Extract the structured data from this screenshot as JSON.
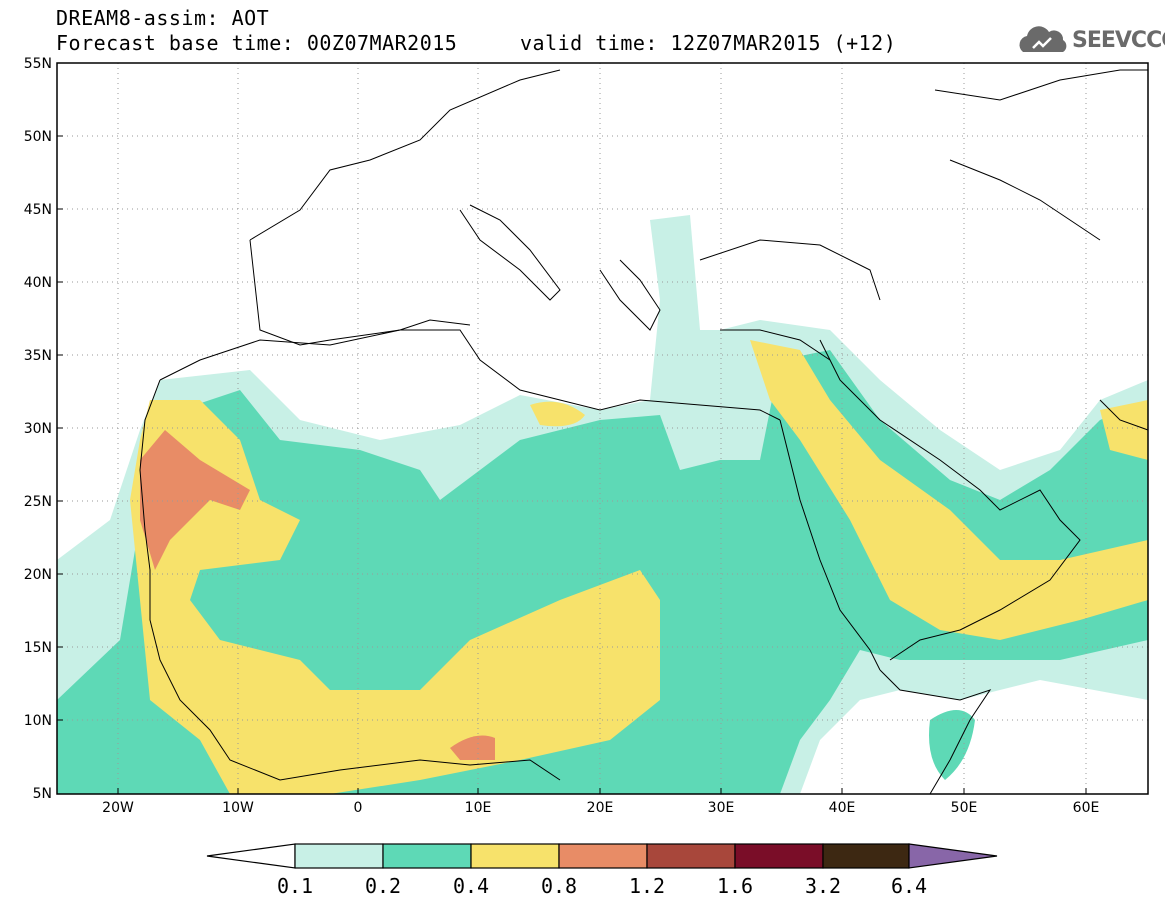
{
  "header": {
    "title_line1": "DREAM8-assim: AOT",
    "title_line2": "Forecast base time: 00Z07MAR2015     valid time: 12Z07MAR2015 (+12)",
    "logo_text": "SEEVCCC"
  },
  "map": {
    "lon_range": [
      -25,
      65
    ],
    "lat_range": [
      5,
      55
    ],
    "lat_ticks": [
      "55N",
      "50N",
      "45N",
      "40N",
      "35N",
      "30N",
      "25N",
      "20N",
      "15N",
      "10N",
      "5N"
    ],
    "lon_ticks": [
      "20W",
      "10W",
      "0",
      "10E",
      "20E",
      "30E",
      "40E",
      "50E",
      "60E"
    ]
  },
  "legend": {
    "labels": [
      "0.1",
      "0.2",
      "0.4",
      "0.8",
      "1.2",
      "1.6",
      "3.2",
      "6.4"
    ],
    "colors": [
      "#ffffff",
      "#c8f0e6",
      "#5ed9b6",
      "#f7e26b",
      "#e88c66",
      "#a8473b",
      "#7a0d28",
      "#3d2812",
      "#8866a8"
    ]
  }
}
